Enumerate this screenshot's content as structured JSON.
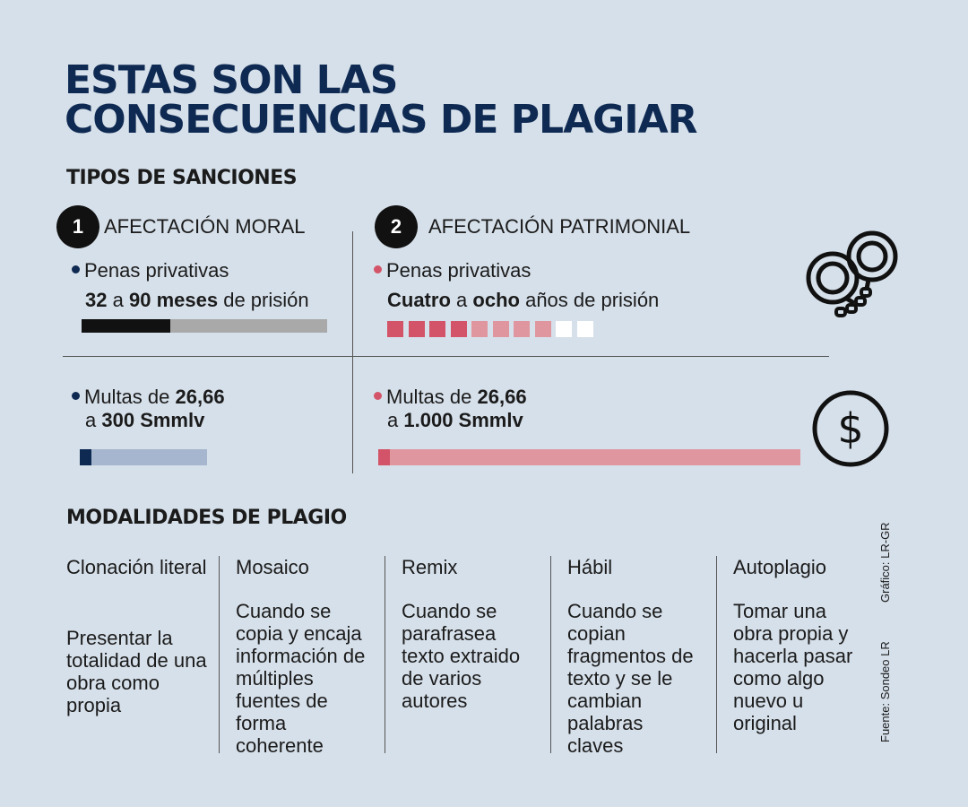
{
  "title": {
    "line1": "ESTAS SON LAS",
    "line2": "CONSECUENCIAS DE PLAGIAR"
  },
  "sanctions": {
    "heading": "TIPOS DE SANCIONES",
    "moral": {
      "number": "1",
      "label": "AFECTACIÓN MORAL",
      "prison_label": "Penas privativas",
      "prison_from": "32",
      "prison_a": "a",
      "prison_to": "90 meses",
      "prison_suffix": "de prisión",
      "prison_bar_fraction": 0.36,
      "fine_line1_prefix": "Multas de",
      "fine_from": "26,66",
      "fine_line2_prefix": "a",
      "fine_to": "300 Smmlv",
      "fine_bar_fraction": 0.09
    },
    "patrimonial": {
      "number": "2",
      "label": "AFECTACIÓN PATRIMONIAL",
      "prison_label": "Penas privativas",
      "prison_from": "Cuatro",
      "prison_a": "a",
      "prison_to": "ocho",
      "prison_suffix": "años de prisión",
      "prison_years_total": 10,
      "prison_years_min": 4,
      "prison_years_max": 8,
      "fine_line1_prefix": "Multas de",
      "fine_from": "26,66",
      "fine_line2_prefix": "a",
      "fine_to": "1.000 Smmlv",
      "fine_bar_fraction": 0.027
    }
  },
  "modalities": {
    "heading": "MODALIDADES DE PLAGIO",
    "items": [
      {
        "name": "Clonación literal",
        "desc": "Presentar la totalidad de una obra como propia"
      },
      {
        "name": "Mosaico",
        "desc": "Cuando se copia y encaja información de múltiples fuentes de forma coherente"
      },
      {
        "name": "Remix",
        "desc": "Cuando se parafrasea texto extraido de varios autores"
      },
      {
        "name": "Hábil",
        "desc": "Cuando se copian fragmentos de texto y se le cambian palabras claves"
      },
      {
        "name": "Autoplagio",
        "desc": "Tomar una obra propia y hacerla pasar como algo nuevo u original"
      }
    ]
  },
  "credits": {
    "graphic": "Gráfico: LR-GR",
    "source": "Fuente: Sondeo LR"
  },
  "colors": {
    "navy": "#0f2a52",
    "red": "#d35468",
    "red_light": "#e0969f",
    "blue_light": "#a6b6cf",
    "gray": "#a9a9a9"
  },
  "icons": [
    "handcuffs-icon",
    "dollar-coin-icon"
  ]
}
